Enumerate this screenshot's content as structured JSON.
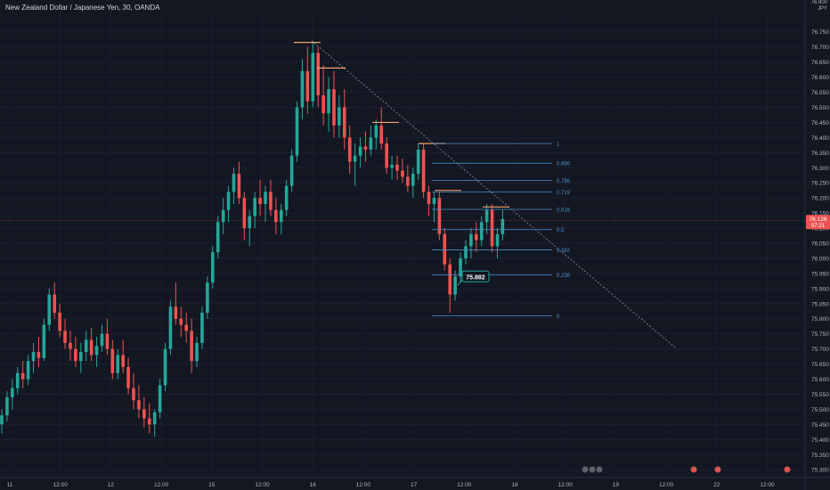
{
  "header": {
    "title": "New Zealand Dollar / Japanese Yen, 30, OANDA",
    "currency_top": "JPY",
    "currency_top_prefix": "76.800"
  },
  "colors": {
    "background": "#131722",
    "up": "#26a69a",
    "down": "#ef5350",
    "fib_line": "#4a90c8",
    "level_line": "#f0a070",
    "trend_line": "#787b86",
    "price_label": "#ef5350"
  },
  "chart_data": {
    "type": "candlestick",
    "title": "New Zealand Dollar / Japanese Yen, 30, OANDA",
    "yaxis": {
      "ylim": [
        75.28,
        76.82
      ],
      "ticks": [
        "75.300",
        "75.350",
        "75.400",
        "75.450",
        "75.500",
        "75.550",
        "75.600",
        "75.650",
        "75.700",
        "75.750",
        "75.800",
        "75.850",
        "75.900",
        "75.950",
        "76.000",
        "76.050",
        "76.100",
        "76.150",
        "76.200",
        "76.250",
        "76.300",
        "76.350",
        "76.400",
        "76.450",
        "76.500",
        "76.550",
        "76.600",
        "76.650",
        "76.700",
        "76.750"
      ]
    },
    "xaxis": {
      "ticks": [
        "11",
        "12:00",
        "12",
        "12:00",
        "15",
        "12:00",
        "16",
        "12:00",
        "17",
        "12:00",
        "18",
        "12:00",
        "19",
        "12:00",
        "22",
        "12:00"
      ]
    },
    "current_price": {
      "value": "76.126",
      "countdown": "07:21"
    },
    "annotation": "75.882",
    "fib_levels": [
      {
        "label": "1",
        "value": 76.38
      },
      {
        "label": "0.886",
        "value": 76.315
      },
      {
        "label": "0.786",
        "value": 76.258
      },
      {
        "label": "0.719",
        "value": 76.22
      },
      {
        "label": "0.618",
        "value": 76.162
      },
      {
        "label": "0.5",
        "value": 76.095
      },
      {
        "label": "0.382",
        "value": 76.028
      },
      {
        "label": "0.236",
        "value": 75.945
      },
      {
        "label": "0",
        "value": 75.81
      }
    ],
    "candles": [
      [
        75.45,
        75.5,
        75.42,
        75.48
      ],
      [
        75.48,
        75.56,
        75.46,
        75.54
      ],
      [
        75.54,
        75.6,
        75.5,
        75.57
      ],
      [
        75.57,
        75.64,
        75.55,
        75.62
      ],
      [
        75.62,
        75.66,
        75.57,
        75.6
      ],
      [
        75.6,
        75.68,
        75.58,
        75.66
      ],
      [
        75.66,
        75.72,
        75.62,
        75.69
      ],
      [
        75.69,
        75.74,
        75.64,
        75.67
      ],
      [
        75.67,
        75.8,
        75.66,
        75.78
      ],
      [
        75.78,
        75.9,
        75.76,
        75.88
      ],
      [
        75.88,
        75.92,
        75.8,
        75.82
      ],
      [
        75.82,
        75.85,
        75.74,
        75.76
      ],
      [
        75.76,
        75.8,
        75.7,
        75.72
      ],
      [
        75.72,
        75.76,
        75.66,
        75.7
      ],
      [
        75.7,
        75.74,
        75.64,
        75.66
      ],
      [
        75.66,
        75.72,
        75.62,
        75.69
      ],
      [
        75.69,
        75.76,
        75.66,
        75.73
      ],
      [
        75.73,
        75.77,
        75.66,
        75.68
      ],
      [
        75.68,
        75.74,
        75.64,
        75.71
      ],
      [
        75.71,
        75.78,
        75.69,
        75.75
      ],
      [
        75.75,
        75.8,
        75.68,
        75.7
      ],
      [
        75.7,
        75.73,
        75.6,
        75.62
      ],
      [
        75.62,
        75.7,
        75.6,
        75.68
      ],
      [
        75.68,
        75.73,
        75.62,
        75.64
      ],
      [
        75.64,
        75.67,
        75.55,
        75.57
      ],
      [
        75.57,
        75.62,
        75.5,
        75.53
      ],
      [
        75.53,
        75.58,
        75.47,
        75.5
      ],
      [
        75.5,
        75.54,
        75.44,
        75.47
      ],
      [
        75.47,
        75.52,
        75.42,
        75.45
      ],
      [
        75.45,
        75.5,
        75.41,
        75.49
      ],
      [
        75.49,
        75.6,
        75.47,
        75.58
      ],
      [
        75.58,
        75.72,
        75.56,
        75.7
      ],
      [
        75.7,
        75.86,
        75.68,
        75.84
      ],
      [
        75.84,
        75.92,
        75.78,
        75.8
      ],
      [
        75.8,
        75.84,
        75.74,
        75.78
      ],
      [
        75.78,
        75.82,
        75.72,
        75.76
      ],
      [
        75.76,
        75.8,
        75.62,
        75.66
      ],
      [
        75.66,
        75.74,
        75.64,
        75.72
      ],
      [
        75.72,
        75.84,
        75.7,
        75.82
      ],
      [
        75.82,
        75.94,
        75.8,
        75.92
      ],
      [
        75.92,
        76.04,
        75.9,
        76.02
      ],
      [
        76.02,
        76.14,
        76.0,
        76.12
      ],
      [
        76.12,
        76.2,
        76.08,
        76.16
      ],
      [
        76.16,
        76.24,
        76.12,
        76.22
      ],
      [
        76.22,
        76.3,
        76.18,
        76.28
      ],
      [
        76.28,
        76.32,
        76.18,
        76.2
      ],
      [
        76.2,
        76.22,
        76.06,
        76.1
      ],
      [
        76.1,
        76.16,
        76.04,
        76.14
      ],
      [
        76.14,
        76.22,
        76.1,
        76.2
      ],
      [
        76.2,
        76.26,
        76.14,
        76.18
      ],
      [
        76.18,
        76.24,
        76.12,
        76.22
      ],
      [
        76.22,
        76.26,
        76.14,
        76.16
      ],
      [
        76.16,
        76.2,
        76.08,
        76.12
      ],
      [
        76.12,
        76.18,
        76.08,
        76.16
      ],
      [
        76.16,
        76.26,
        76.14,
        76.24
      ],
      [
        76.24,
        76.36,
        76.22,
        76.34
      ],
      [
        76.34,
        76.52,
        76.32,
        76.5
      ],
      [
        76.5,
        76.66,
        76.46,
        76.62
      ],
      [
        76.62,
        76.7,
        76.48,
        76.52
      ],
      [
        76.52,
        76.72,
        76.5,
        76.68
      ],
      [
        76.68,
        76.7,
        76.5,
        76.54
      ],
      [
        76.54,
        76.64,
        76.44,
        76.48
      ],
      [
        76.48,
        76.6,
        76.42,
        76.56
      ],
      [
        76.56,
        76.62,
        76.4,
        76.44
      ],
      [
        76.44,
        76.54,
        76.4,
        76.5
      ],
      [
        76.5,
        76.56,
        76.36,
        76.4
      ],
      [
        76.4,
        76.44,
        76.28,
        76.32
      ],
      [
        76.32,
        76.38,
        76.24,
        76.34
      ],
      [
        76.34,
        76.4,
        76.3,
        76.37
      ],
      [
        76.37,
        76.42,
        76.32,
        76.36
      ],
      [
        76.36,
        76.44,
        76.34,
        76.4
      ],
      [
        76.4,
        76.46,
        76.36,
        76.44
      ],
      [
        76.44,
        76.5,
        76.36,
        76.38
      ],
      [
        76.38,
        76.4,
        76.28,
        76.3
      ],
      [
        76.3,
        76.34,
        76.26,
        76.31
      ],
      [
        76.31,
        76.34,
        76.26,
        76.29
      ],
      [
        76.29,
        76.33,
        76.25,
        76.27
      ],
      [
        76.27,
        76.31,
        76.22,
        76.24
      ],
      [
        76.24,
        76.3,
        76.2,
        76.28
      ],
      [
        76.28,
        76.38,
        76.26,
        76.36
      ],
      [
        76.36,
        76.38,
        76.2,
        76.22
      ],
      [
        76.22,
        76.24,
        76.14,
        76.18
      ],
      [
        76.18,
        76.22,
        76.12,
        76.2
      ],
      [
        76.2,
        76.22,
        76.06,
        76.08
      ],
      [
        76.08,
        76.1,
        75.96,
        75.98
      ],
      [
        75.98,
        76.0,
        75.82,
        75.88
      ],
      [
        75.88,
        75.96,
        75.86,
        75.94
      ],
      [
        75.94,
        76.02,
        75.92,
        76.0
      ],
      [
        76.0,
        76.06,
        75.98,
        76.04
      ],
      [
        76.04,
        76.1,
        76.0,
        76.08
      ],
      [
        76.08,
        76.12,
        76.02,
        76.06
      ],
      [
        76.06,
        76.14,
        76.04,
        76.12
      ],
      [
        76.12,
        76.18,
        76.08,
        76.16
      ],
      [
        76.16,
        76.18,
        76.02,
        76.04
      ],
      [
        76.04,
        76.1,
        76.0,
        76.08
      ],
      [
        76.08,
        76.16,
        76.06,
        76.13
      ]
    ]
  },
  "bottom_markers": [
    "flag-icon",
    "flag-icon",
    "flag-icon",
    "event-icon",
    "event-icon",
    "event-icon"
  ]
}
